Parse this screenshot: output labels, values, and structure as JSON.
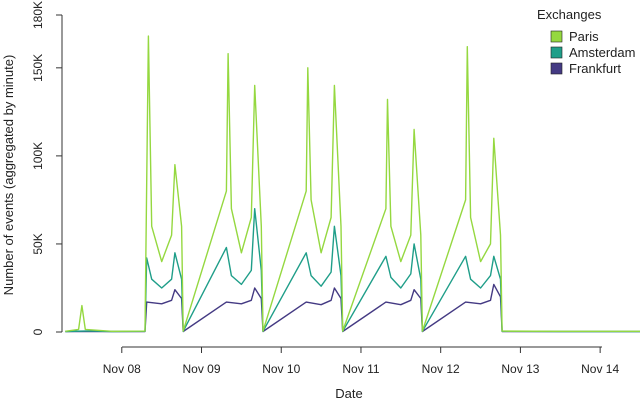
{
  "chart_data": {
    "type": "line",
    "xlabel": "Date",
    "ylabel": "Number of events (aggregated by minute)",
    "y_ticks": [
      {
        "value": 0,
        "label": "0"
      },
      {
        "value": 50000,
        "label": "50K"
      },
      {
        "value": 100000,
        "label": "100K"
      },
      {
        "value": 150000,
        "label": "150K"
      },
      {
        "value": 180000,
        "label": "180K"
      }
    ],
    "x_ticks": [
      {
        "value": "2015-11-08",
        "label": "Nov 08"
      },
      {
        "value": "2015-11-09",
        "label": "Nov 09"
      },
      {
        "value": "2015-11-10",
        "label": "Nov 10"
      },
      {
        "value": "2015-11-11",
        "label": "Nov 11"
      },
      {
        "value": "2015-11-12",
        "label": "Nov 12"
      },
      {
        "value": "2015-11-13",
        "label": "Nov 13"
      },
      {
        "value": "2015-11-14",
        "label": "Nov 14"
      }
    ],
    "xlim": [
      "2015-11-07 06:00",
      "2015-11-14 12:00"
    ],
    "ylim": [
      0,
      180000
    ],
    "grid": false,
    "legend": {
      "title": "Exchanges",
      "placement": "top-right",
      "entries": [
        {
          "name": "Paris",
          "color": "#95d840"
        },
        {
          "name": "Amsterdam",
          "color": "#1f9e89"
        },
        {
          "name": "Frankfurt",
          "color": "#443a83"
        }
      ]
    },
    "series": [
      {
        "name": "Frankfurt",
        "color": "#443a83",
        "x": [
          "2015-11-07 07:00",
          "2015-11-07 14:00",
          "2015-11-07 21:00",
          "2015-11-08 07:00",
          "2015-11-08 07:30",
          "2015-11-08 12:00",
          "2015-11-08 15:00",
          "2015-11-08 16:00",
          "2015-11-08 18:00",
          "2015-11-08 18:30",
          "2015-11-09 07:30",
          "2015-11-09 12:00",
          "2015-11-09 15:00",
          "2015-11-09 16:00",
          "2015-11-09 18:00",
          "2015-11-09 18:30",
          "2015-11-10 07:30",
          "2015-11-10 12:00",
          "2015-11-10 15:00",
          "2015-11-10 16:00",
          "2015-11-10 18:00",
          "2015-11-10 18:30",
          "2015-11-11 07:30",
          "2015-11-11 12:00",
          "2015-11-11 15:00",
          "2015-11-11 16:00",
          "2015-11-11 18:00",
          "2015-11-11 18:30",
          "2015-11-12 07:30",
          "2015-11-12 12:00",
          "2015-11-12 15:00",
          "2015-11-12 16:00",
          "2015-11-12 18:00",
          "2015-11-12 18:30",
          "2015-11-13 12:00",
          "2015-11-14 12:00"
        ],
        "y": [
          200,
          300,
          200,
          300,
          17000,
          16000,
          18000,
          24000,
          19000,
          300,
          17000,
          16000,
          18000,
          25000,
          19000,
          300,
          17000,
          15500,
          18000,
          25000,
          19000,
          300,
          17000,
          15500,
          18000,
          24000,
          19000,
          300,
          17000,
          16000,
          18000,
          27000,
          20000,
          300,
          200,
          200
        ]
      },
      {
        "name": "Amsterdam",
        "color": "#1f9e89",
        "x": [
          "2015-11-07 07:00",
          "2015-11-07 14:00",
          "2015-11-07 21:00",
          "2015-11-08 07:00",
          "2015-11-08 07:30",
          "2015-11-08 09:00",
          "2015-11-08 12:00",
          "2015-11-08 15:00",
          "2015-11-08 16:00",
          "2015-11-08 18:00",
          "2015-11-08 18:30",
          "2015-11-09 07:30",
          "2015-11-09 09:00",
          "2015-11-09 12:00",
          "2015-11-09 15:00",
          "2015-11-09 16:00",
          "2015-11-09 18:00",
          "2015-11-09 18:30",
          "2015-11-10 07:30",
          "2015-11-10 09:00",
          "2015-11-10 12:00",
          "2015-11-10 15:00",
          "2015-11-10 16:00",
          "2015-11-10 18:00",
          "2015-11-10 18:30",
          "2015-11-11 07:30",
          "2015-11-11 09:00",
          "2015-11-11 12:00",
          "2015-11-11 15:00",
          "2015-11-11 16:00",
          "2015-11-11 18:00",
          "2015-11-11 18:30",
          "2015-11-12 07:30",
          "2015-11-12 09:00",
          "2015-11-12 12:00",
          "2015-11-12 15:00",
          "2015-11-12 16:00",
          "2015-11-12 18:00",
          "2015-11-12 18:30",
          "2015-11-13 12:00",
          "2015-11-14 12:00"
        ],
        "y": [
          300,
          600,
          300,
          400,
          42000,
          30000,
          25000,
          30000,
          45000,
          30000,
          400,
          48000,
          32000,
          27000,
          35000,
          70000,
          35000,
          400,
          45000,
          32000,
          26000,
          34000,
          60000,
          32000,
          400,
          43000,
          31000,
          25000,
          33000,
          50000,
          30000,
          400,
          43000,
          30000,
          25000,
          32000,
          43000,
          30000,
          400,
          300,
          300
        ]
      },
      {
        "name": "Paris",
        "color": "#95d840",
        "x": [
          "2015-11-07 07:00",
          "2015-11-07 11:00",
          "2015-11-07 12:00",
          "2015-11-07 13:00",
          "2015-11-07 21:00",
          "2015-11-08 07:00",
          "2015-11-08 07:30",
          "2015-11-08 08:00",
          "2015-11-08 09:00",
          "2015-11-08 12:00",
          "2015-11-08 15:00",
          "2015-11-08 16:00",
          "2015-11-08 18:00",
          "2015-11-08 18:30",
          "2015-11-09 07:30",
          "2015-11-09 08:00",
          "2015-11-09 09:00",
          "2015-11-09 12:00",
          "2015-11-09 15:00",
          "2015-11-09 16:00",
          "2015-11-09 18:00",
          "2015-11-09 18:30",
          "2015-11-10 07:30",
          "2015-11-10 08:00",
          "2015-11-10 09:00",
          "2015-11-10 12:00",
          "2015-11-10 15:00",
          "2015-11-10 16:00",
          "2015-11-10 18:00",
          "2015-11-10 18:30",
          "2015-11-11 07:30",
          "2015-11-11 08:00",
          "2015-11-11 09:00",
          "2015-11-11 12:00",
          "2015-11-11 15:00",
          "2015-11-11 16:00",
          "2015-11-11 18:00",
          "2015-11-11 18:30",
          "2015-11-12 07:30",
          "2015-11-12 08:00",
          "2015-11-12 09:00",
          "2015-11-12 12:00",
          "2015-11-12 15:00",
          "2015-11-12 16:00",
          "2015-11-12 18:00",
          "2015-11-12 18:30",
          "2015-11-13 12:00",
          "2015-11-14 12:00"
        ],
        "y": [
          400,
          1500,
          15000,
          1500,
          400,
          500,
          85000,
          168000,
          60000,
          40000,
          55000,
          95000,
          60000,
          500,
          80000,
          158000,
          70000,
          45000,
          65000,
          140000,
          60000,
          500,
          80000,
          150000,
          75000,
          45000,
          65000,
          140000,
          60000,
          500,
          70000,
          132000,
          60000,
          40000,
          55000,
          115000,
          55000,
          500,
          75000,
          162000,
          65000,
          40000,
          50000,
          110000,
          55000,
          500,
          400,
          400
        ]
      }
    ]
  }
}
